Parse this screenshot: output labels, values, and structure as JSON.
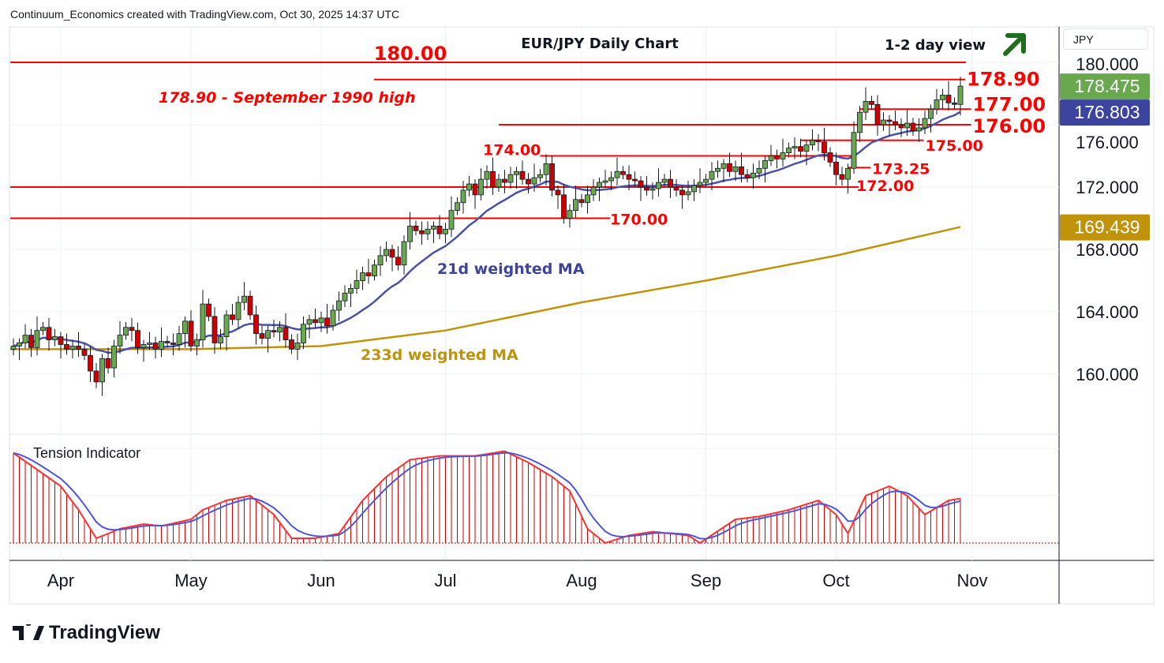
{
  "header": "Continuum_Economics created with TradingView.com, Oct 30, 2025 14:37 UTC",
  "currency": "JPY",
  "brand": "TradingView",
  "colors": {
    "up": "#6aa84f",
    "down": "#cc0000",
    "level": "#ff0000",
    "ma21": "#4a52a8",
    "ma233": "#c0930a",
    "last_badge": "#6aa84f",
    "ma21_badge": "#3c44a0",
    "ma233_badge": "#c0930a",
    "arrow": "#1e6e1e"
  },
  "chart_data": {
    "type": "candlestick",
    "title": "EUR/JPY Daily Chart",
    "subtitle": "1-2 day view",
    "trend_icon": "up-right-arrow-icon",
    "ylim": [
      156,
      181.5
    ],
    "y_ticks": [
      "180.000",
      "176.000",
      "172.000",
      "168.000",
      "164.000",
      "160.000"
    ],
    "y_tick_values": [
      180,
      176,
      172,
      168,
      164,
      160
    ],
    "x_ticks": [
      {
        "label": "Apr",
        "day": 8
      },
      {
        "label": "May",
        "day": 30
      },
      {
        "label": "Jun",
        "day": 52
      },
      {
        "label": "Jul",
        "day": 73
      },
      {
        "label": "Aug",
        "day": 96
      },
      {
        "label": "Sep",
        "day": 117
      },
      {
        "label": "Oct",
        "day": 139
      },
      {
        "label": "Nov",
        "day": 162
      }
    ],
    "closes": [
      161.8,
      162.0,
      162.5,
      161.7,
      162.8,
      163.0,
      162.2,
      162.4,
      161.9,
      161.6,
      161.8,
      161.6,
      161.2,
      160.2,
      159.5,
      161.0,
      160.4,
      161.8,
      162.5,
      163.0,
      162.8,
      161.7,
      161.9,
      162.0,
      161.6,
      162.1,
      162.0,
      161.9,
      162.6,
      163.4,
      161.8,
      162.2,
      164.5,
      163.7,
      162.0,
      162.4,
      163.8,
      163.5,
      164.6,
      165.0,
      163.8,
      162.6,
      162.3,
      162.8,
      162.7,
      163.0,
      162.2,
      161.6,
      162.0,
      163.2,
      163.5,
      163.3,
      163.6,
      163.1,
      164.1,
      164.7,
      165.2,
      165.5,
      166.0,
      166.5,
      166.3,
      167.0,
      167.6,
      168.0,
      167.5,
      167.0,
      168.5,
      169.5,
      169.2,
      169.0,
      169.3,
      169.5,
      169.0,
      169.3,
      170.5,
      171.0,
      171.8,
      172.2,
      171.5,
      172.5,
      173.0,
      172.0,
      172.5,
      172.3,
      172.8,
      173.0,
      172.5,
      172.2,
      172.6,
      172.8,
      173.5,
      171.8,
      171.5,
      170.0,
      170.5,
      171.2,
      171.0,
      171.5,
      172.0,
      172.3,
      172.4,
      172.6,
      173.0,
      172.8,
      172.5,
      172.4,
      172.0,
      171.8,
      171.9,
      172.3,
      172.5,
      172.0,
      171.8,
      171.5,
      171.7,
      172.1,
      172.3,
      172.5,
      173.0,
      173.2,
      173.5,
      173.0,
      173.3,
      172.8,
      172.6,
      172.9,
      173.2,
      173.7,
      174.0,
      173.8,
      174.2,
      174.5,
      174.6,
      174.3,
      174.7,
      175.0,
      174.9,
      174.2,
      173.6,
      172.8,
      172.5,
      173.2,
      175.5,
      176.8,
      177.5,
      177.3,
      176.0,
      176.3,
      176.2,
      176.0,
      175.8,
      176.1,
      175.6,
      175.8,
      176.4,
      177.0,
      177.6,
      177.9,
      177.4,
      177.3,
      178.475
    ],
    "ma233": [
      [
        0,
        161.6
      ],
      [
        30,
        161.6
      ],
      [
        52,
        161.8
      ],
      [
        73,
        162.8
      ],
      [
        96,
        164.6
      ],
      [
        117,
        166.0
      ],
      [
        139,
        167.6
      ],
      [
        160,
        169.439
      ]
    ],
    "levels": [
      {
        "price": 180.0,
        "label": "180.00",
        "from": 61,
        "to": 161
      },
      {
        "price": 178.9,
        "label": "178.90",
        "from": 61,
        "to": 160
      },
      {
        "price": 177.0,
        "label": "177.00",
        "from": 143,
        "to": 161
      },
      {
        "price": 176.0,
        "label": "176.00",
        "from": 82,
        "to": 161
      },
      {
        "price": 175.0,
        "label": "175.00",
        "from": 133,
        "to": 153
      },
      {
        "price": 174.0,
        "label": "174.00",
        "from": 89,
        "to": 141
      },
      {
        "price": 173.25,
        "label": "173.25",
        "from": 141,
        "to": 144
      },
      {
        "price": 172.0,
        "label": "172.00",
        "from": 0,
        "to": 142
      },
      {
        "price": 170.0,
        "label": "170.00",
        "from": 0,
        "to": 100
      }
    ],
    "annotations": {
      "high_note": "178.90 - September 1990 high",
      "ma21_label": "21d weighted MA",
      "ma233_label": "233d weighted MA"
    },
    "badges": {
      "last": "178.475",
      "ma21": "176.803",
      "ma233": "169.439"
    },
    "tension": {
      "title": "Tension Indicator",
      "ylim": [
        0,
        100
      ],
      "points": [
        [
          0,
          95
        ],
        [
          8,
          60
        ],
        [
          11,
          35
        ],
        [
          14,
          5
        ],
        [
          18,
          15
        ],
        [
          22,
          20
        ],
        [
          25,
          18
        ],
        [
          30,
          25
        ],
        [
          32,
          35
        ],
        [
          36,
          45
        ],
        [
          40,
          50
        ],
        [
          44,
          30
        ],
        [
          47,
          5
        ],
        [
          51,
          5
        ],
        [
          55,
          10
        ],
        [
          59,
          45
        ],
        [
          63,
          70
        ],
        [
          67,
          88
        ],
        [
          72,
          92
        ],
        [
          78,
          92
        ],
        [
          83,
          97
        ],
        [
          87,
          85
        ],
        [
          91,
          70
        ],
        [
          94,
          55
        ],
        [
          97,
          15
        ],
        [
          100,
          0
        ],
        [
          104,
          8
        ],
        [
          108,
          12
        ],
        [
          114,
          8
        ],
        [
          116,
          0
        ],
        [
          122,
          25
        ],
        [
          126,
          28
        ],
        [
          131,
          35
        ],
        [
          136,
          45
        ],
        [
          139,
          30
        ],
        [
          141,
          10
        ],
        [
          144,
          50
        ],
        [
          148,
          60
        ],
        [
          151,
          50
        ],
        [
          154,
          30
        ],
        [
          158,
          45
        ],
        [
          160,
          47
        ]
      ]
    }
  }
}
